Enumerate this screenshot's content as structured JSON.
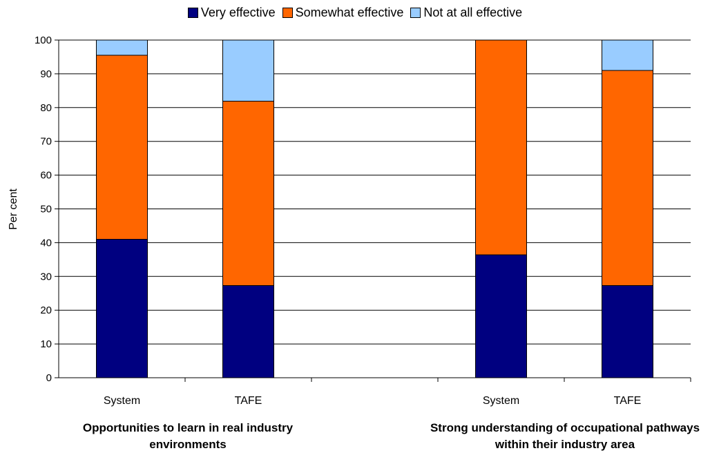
{
  "chart_data": {
    "type": "bar",
    "stacked": true,
    "categories": [
      "System",
      "TAFE",
      "System",
      "TAFE"
    ],
    "groups": [
      {
        "label": "Opportunities to learn in real industry environments",
        "categories": [
          "System",
          "TAFE"
        ]
      },
      {
        "label": "Strong understanding of occupational pathways within their industry area",
        "categories": [
          "System",
          "TAFE"
        ]
      }
    ],
    "series": [
      {
        "name": "Very effective",
        "color": "#000080",
        "values": [
          41,
          27.3,
          36.4,
          27.3
        ]
      },
      {
        "name": "Somewhat effective",
        "color": "#FF6600",
        "values": [
          54.5,
          54.6,
          63.6,
          63.7
        ]
      },
      {
        "name": "Not at all effective",
        "color": "#99CCFF",
        "values": [
          4.5,
          18.1,
          0,
          9
        ]
      }
    ],
    "ylabel": "Per cent",
    "ylim": [
      0,
      100
    ],
    "yticks": [
      0,
      10,
      20,
      30,
      40,
      50,
      60,
      70,
      80,
      90,
      100
    ],
    "grid": true,
    "legend_position": "top"
  }
}
